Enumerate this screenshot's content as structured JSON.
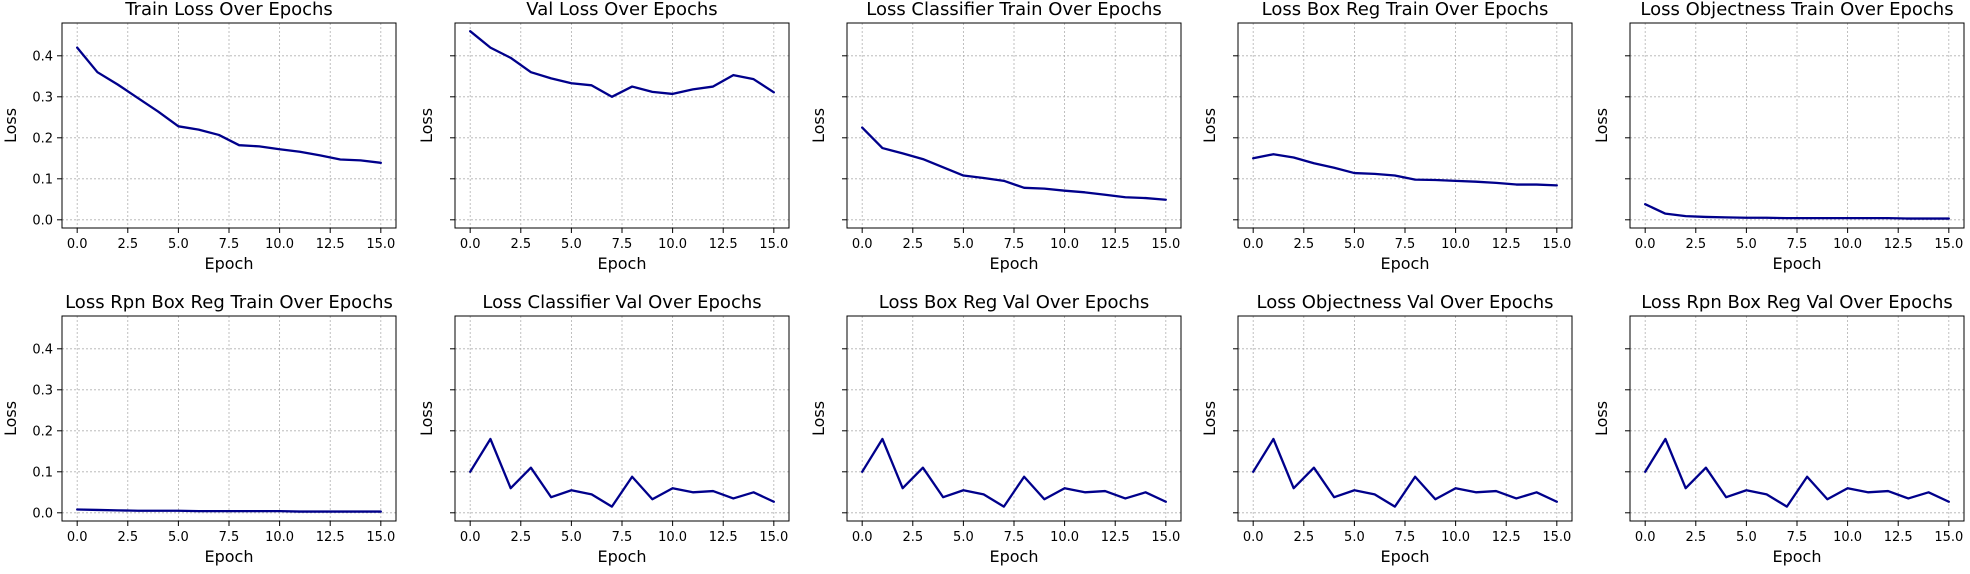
{
  "chart_data": [
    {
      "type": "line",
      "title": "Train Loss Over Epochs",
      "xlabel": "Epoch",
      "ylabel": "Loss",
      "x": [
        0,
        1,
        2,
        3,
        4,
        5,
        6,
        7,
        8,
        9,
        10,
        11,
        12,
        13,
        14,
        15
      ],
      "series": [
        {
          "values": [
            0.42,
            0.36,
            0.33,
            0.297,
            0.264,
            0.228,
            0.22,
            0.207,
            0.182,
            0.179,
            0.172,
            0.166,
            0.157,
            0.147,
            0.145,
            0.139
          ]
        }
      ],
      "xlim": [
        -0.75,
        15.75
      ],
      "ylim": [
        -0.02,
        0.48
      ],
      "xticks": [
        "0.0",
        "2.5",
        "5.0",
        "7.5",
        "10.0",
        "12.5",
        "15.0"
      ],
      "yticks": [
        "0.0",
        "0.1",
        "0.2",
        "0.3",
        "0.4"
      ],
      "show_ytick_labels": true,
      "grid": true,
      "line_color": "#00008b"
    },
    {
      "type": "line",
      "title": "Val Loss Over Epochs",
      "xlabel": "Epoch",
      "ylabel": "Loss",
      "x": [
        0,
        1,
        2,
        3,
        4,
        5,
        6,
        7,
        8,
        9,
        10,
        11,
        12,
        13,
        14,
        15
      ],
      "series": [
        {
          "values": [
            0.46,
            0.42,
            0.395,
            0.36,
            0.345,
            0.333,
            0.328,
            0.3,
            0.325,
            0.312,
            0.307,
            0.318,
            0.325,
            0.353,
            0.343,
            0.311
          ]
        }
      ],
      "xlim": [
        -0.75,
        15.75
      ],
      "ylim": [
        -0.02,
        0.48
      ],
      "xticks": [
        "0.0",
        "2.5",
        "5.0",
        "7.5",
        "10.0",
        "12.5",
        "15.0"
      ],
      "yticks": [
        "0.0",
        "0.1",
        "0.2",
        "0.3",
        "0.4"
      ],
      "show_ytick_labels": false,
      "grid": true,
      "line_color": "#00008b"
    },
    {
      "type": "line",
      "title": "Loss Classifier Train Over Epochs",
      "xlabel": "Epoch",
      "ylabel": "Loss",
      "x": [
        0,
        1,
        2,
        3,
        4,
        5,
        6,
        7,
        8,
        9,
        10,
        11,
        12,
        13,
        14,
        15
      ],
      "series": [
        {
          "values": [
            0.225,
            0.175,
            0.162,
            0.148,
            0.128,
            0.108,
            0.102,
            0.095,
            0.078,
            0.076,
            0.071,
            0.067,
            0.061,
            0.055,
            0.053,
            0.049
          ]
        }
      ],
      "xlim": [
        -0.75,
        15.75
      ],
      "ylim": [
        -0.02,
        0.48
      ],
      "xticks": [
        "0.0",
        "2.5",
        "5.0",
        "7.5",
        "10.0",
        "12.5",
        "15.0"
      ],
      "yticks": [
        "0.0",
        "0.1",
        "0.2",
        "0.3",
        "0.4"
      ],
      "show_ytick_labels": false,
      "grid": true,
      "line_color": "#00008b"
    },
    {
      "type": "line",
      "title": "Loss Box Reg Train Over Epochs",
      "xlabel": "Epoch",
      "ylabel": "Loss",
      "x": [
        0,
        1,
        2,
        3,
        4,
        5,
        6,
        7,
        8,
        9,
        10,
        11,
        12,
        13,
        14,
        15
      ],
      "series": [
        {
          "values": [
            0.15,
            0.16,
            0.152,
            0.138,
            0.127,
            0.114,
            0.112,
            0.108,
            0.098,
            0.097,
            0.095,
            0.093,
            0.09,
            0.086,
            0.086,
            0.084
          ]
        }
      ],
      "xlim": [
        -0.75,
        15.75
      ],
      "ylim": [
        -0.02,
        0.48
      ],
      "xticks": [
        "0.0",
        "2.5",
        "5.0",
        "7.5",
        "10.0",
        "12.5",
        "15.0"
      ],
      "yticks": [
        "0.0",
        "0.1",
        "0.2",
        "0.3",
        "0.4"
      ],
      "show_ytick_labels": false,
      "grid": true,
      "line_color": "#00008b"
    },
    {
      "type": "line",
      "title": "Loss Objectness Train Over Epochs",
      "xlabel": "Epoch",
      "ylabel": "Loss",
      "x": [
        0,
        1,
        2,
        3,
        4,
        5,
        6,
        7,
        8,
        9,
        10,
        11,
        12,
        13,
        14,
        15
      ],
      "series": [
        {
          "values": [
            0.038,
            0.015,
            0.009,
            0.007,
            0.006,
            0.005,
            0.005,
            0.004,
            0.004,
            0.004,
            0.004,
            0.004,
            0.004,
            0.003,
            0.003,
            0.003
          ]
        }
      ],
      "xlim": [
        -0.75,
        15.75
      ],
      "ylim": [
        -0.02,
        0.48
      ],
      "xticks": [
        "0.0",
        "2.5",
        "5.0",
        "7.5",
        "10.0",
        "12.5",
        "15.0"
      ],
      "yticks": [
        "0.0",
        "0.1",
        "0.2",
        "0.3",
        "0.4"
      ],
      "show_ytick_labels": false,
      "grid": true,
      "line_color": "#00008b"
    },
    {
      "type": "line",
      "title": "Loss Rpn Box Reg Train Over Epochs",
      "xlabel": "Epoch",
      "ylabel": "Loss",
      "x": [
        0,
        1,
        2,
        3,
        4,
        5,
        6,
        7,
        8,
        9,
        10,
        11,
        12,
        13,
        14,
        15
      ],
      "series": [
        {
          "values": [
            0.008,
            0.007,
            0.006,
            0.005,
            0.005,
            0.005,
            0.004,
            0.004,
            0.004,
            0.004,
            0.004,
            0.003,
            0.003,
            0.003,
            0.003,
            0.003
          ]
        }
      ],
      "xlim": [
        -0.75,
        15.75
      ],
      "ylim": [
        -0.02,
        0.48
      ],
      "xticks": [
        "0.0",
        "2.5",
        "5.0",
        "7.5",
        "10.0",
        "12.5",
        "15.0"
      ],
      "yticks": [
        "0.0",
        "0.1",
        "0.2",
        "0.3",
        "0.4"
      ],
      "show_ytick_labels": true,
      "grid": true,
      "line_color": "#00008b"
    },
    {
      "type": "line",
      "title": "Loss Classifier Val Over Epochs",
      "xlabel": "Epoch",
      "ylabel": "Loss",
      "x": [
        0,
        1,
        2,
        3,
        4,
        5,
        6,
        7,
        8,
        9,
        10,
        11,
        12,
        13,
        14,
        15
      ],
      "series": [
        {
          "values": [
            0.1,
            0.18,
            0.06,
            0.11,
            0.038,
            0.055,
            0.045,
            0.015,
            0.088,
            0.033,
            0.06,
            0.05,
            0.053,
            0.035,
            0.05,
            0.027
          ]
        }
      ],
      "xlim": [
        -0.75,
        15.75
      ],
      "ylim": [
        -0.02,
        0.48
      ],
      "xticks": [
        "0.0",
        "2.5",
        "5.0",
        "7.5",
        "10.0",
        "12.5",
        "15.0"
      ],
      "yticks": [
        "0.0",
        "0.1",
        "0.2",
        "0.3",
        "0.4"
      ],
      "show_ytick_labels": false,
      "grid": true,
      "line_color": "#00008b"
    },
    {
      "type": "line",
      "title": "Loss Box Reg Val Over Epochs",
      "xlabel": "Epoch",
      "ylabel": "Loss",
      "x": [
        0,
        1,
        2,
        3,
        4,
        5,
        6,
        7,
        8,
        9,
        10,
        11,
        12,
        13,
        14,
        15
      ],
      "series": [
        {
          "values": [
            0.1,
            0.18,
            0.06,
            0.11,
            0.038,
            0.055,
            0.045,
            0.015,
            0.088,
            0.033,
            0.06,
            0.05,
            0.053,
            0.035,
            0.05,
            0.027
          ]
        }
      ],
      "xlim": [
        -0.75,
        15.75
      ],
      "ylim": [
        -0.02,
        0.48
      ],
      "xticks": [
        "0.0",
        "2.5",
        "5.0",
        "7.5",
        "10.0",
        "12.5",
        "15.0"
      ],
      "yticks": [
        "0.0",
        "0.1",
        "0.2",
        "0.3",
        "0.4"
      ],
      "show_ytick_labels": false,
      "grid": true,
      "line_color": "#00008b"
    },
    {
      "type": "line",
      "title": "Loss Objectness Val Over Epochs",
      "xlabel": "Epoch",
      "ylabel": "Loss",
      "x": [
        0,
        1,
        2,
        3,
        4,
        5,
        6,
        7,
        8,
        9,
        10,
        11,
        12,
        13,
        14,
        15
      ],
      "series": [
        {
          "values": [
            0.1,
            0.18,
            0.06,
            0.11,
            0.038,
            0.055,
            0.045,
            0.015,
            0.088,
            0.033,
            0.06,
            0.05,
            0.053,
            0.035,
            0.05,
            0.027
          ]
        }
      ],
      "xlim": [
        -0.75,
        15.75
      ],
      "ylim": [
        -0.02,
        0.48
      ],
      "xticks": [
        "0.0",
        "2.5",
        "5.0",
        "7.5",
        "10.0",
        "12.5",
        "15.0"
      ],
      "yticks": [
        "0.0",
        "0.1",
        "0.2",
        "0.3",
        "0.4"
      ],
      "show_ytick_labels": false,
      "grid": true,
      "line_color": "#00008b"
    },
    {
      "type": "line",
      "title": "Loss Rpn Box Reg Val Over Epochs",
      "xlabel": "Epoch",
      "ylabel": "Loss",
      "x": [
        0,
        1,
        2,
        3,
        4,
        5,
        6,
        7,
        8,
        9,
        10,
        11,
        12,
        13,
        14,
        15
      ],
      "series": [
        {
          "values": [
            0.1,
            0.18,
            0.06,
            0.11,
            0.038,
            0.055,
            0.045,
            0.015,
            0.088,
            0.033,
            0.06,
            0.05,
            0.053,
            0.035,
            0.05,
            0.027
          ]
        }
      ],
      "xlim": [
        -0.75,
        15.75
      ],
      "ylim": [
        -0.02,
        0.48
      ],
      "xticks": [
        "0.0",
        "2.5",
        "5.0",
        "7.5",
        "10.0",
        "12.5",
        "15.0"
      ],
      "yticks": [
        "0.0",
        "0.1",
        "0.2",
        "0.3",
        "0.4"
      ],
      "show_ytick_labels": false,
      "grid": true,
      "line_color": "#00008b"
    }
  ]
}
